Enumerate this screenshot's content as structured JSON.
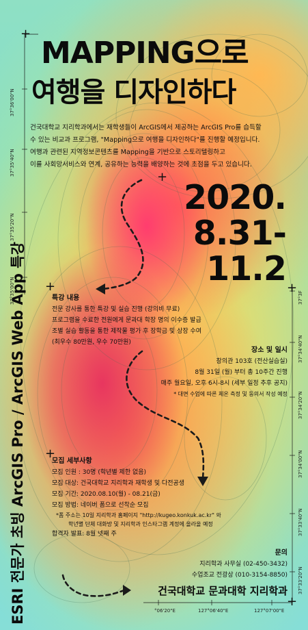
{
  "title_line1": "MAPPING으로",
  "title_line2": "여행을 디자인하다",
  "intro": [
    "건국대학교 지리학과에서는 재학생들이 ArcGIS에서 제공하는 ArcGIS Pro를 습득할",
    "수 있는 비교과 프로그램, \"Mapping으로 여행을 디자인하다\"를 진행할 예정입니다.",
    "여행과 관련된 지역정보콘텐츠를 Mapping을 기반으로 스토리텔링하고",
    "이를 사회망서비스와 연계, 공유하는 능력을 배양하는 것에 초점을 두고 있습니다."
  ],
  "date": [
    "2020.",
    "8.31-",
    "11.2"
  ],
  "side_title": "ESRI 전문가 초빙 ArcGIS Pro / ArcGIS Web App 특강",
  "lecture": {
    "title": "특강 내용",
    "lines": [
      "전문 강사를 통한 특강 및 실습 진행 (강의비 무료)",
      "프로그램을 수료한 전원에게 문과대 학장 명의 이수증 발급",
      "조별 실습 활동을 통한 제작물 평가 후 장학금 및 상장 수여",
      "(최우수 80만원, 우수 70만원)"
    ]
  },
  "venue": {
    "title": "장소 및 일시",
    "lines": [
      "창의관 103호 (전산실습실)",
      "8월 31일 (월) 부터 총 10주간 진행",
      "매주 월요일, 오후 6시-8시 (세부 일정 추후 공지)",
      "* 대면 수업에 따른 체온 측정 및 동의서 작성 예정"
    ]
  },
  "recruit": {
    "title": "모집 세부사항",
    "lines": [
      "모집 인원 : 30명 (학년별 제한 없음)",
      "모집 대상: 건국대학교 지리학과 재학생 및 다전공생",
      "모집 기간: 2020.08.10(월) - 08.21(금)",
      "모집 방법: 네이버 폼으로 선착순 모집",
      "*폼 주소는 10일 지리학과 홈페이지 \"http://kugeo.konkuk.ac.kr\" 와",
      "학년별 단체 대화방 및 지리학과 인스타그램 계정에 올라올 예정",
      "합격자 발표: 8월 넷째 주"
    ]
  },
  "contact": {
    "title": "문의",
    "lines": [
      "지리학과 사무실 (02-450-3432)",
      "수업조교 전광상 (010-3154-8850)"
    ]
  },
  "organizer": "건국대학교 문과대학 지리학과",
  "coords_left": [
    "37°36'00\"N",
    "37°35'40\"N",
    "37°35'20\"N",
    "37°35'00\"N"
  ],
  "coords_right": [
    "37°3F",
    "37°34'40\"N",
    "37°34'20\"N",
    "37°34'00\"N",
    "37°33'40\"N",
    "37°33'20\"N"
  ],
  "coords_bottom": [
    "°06'20\"E",
    "127°06'40\"E",
    "127°07'00\"E"
  ]
}
